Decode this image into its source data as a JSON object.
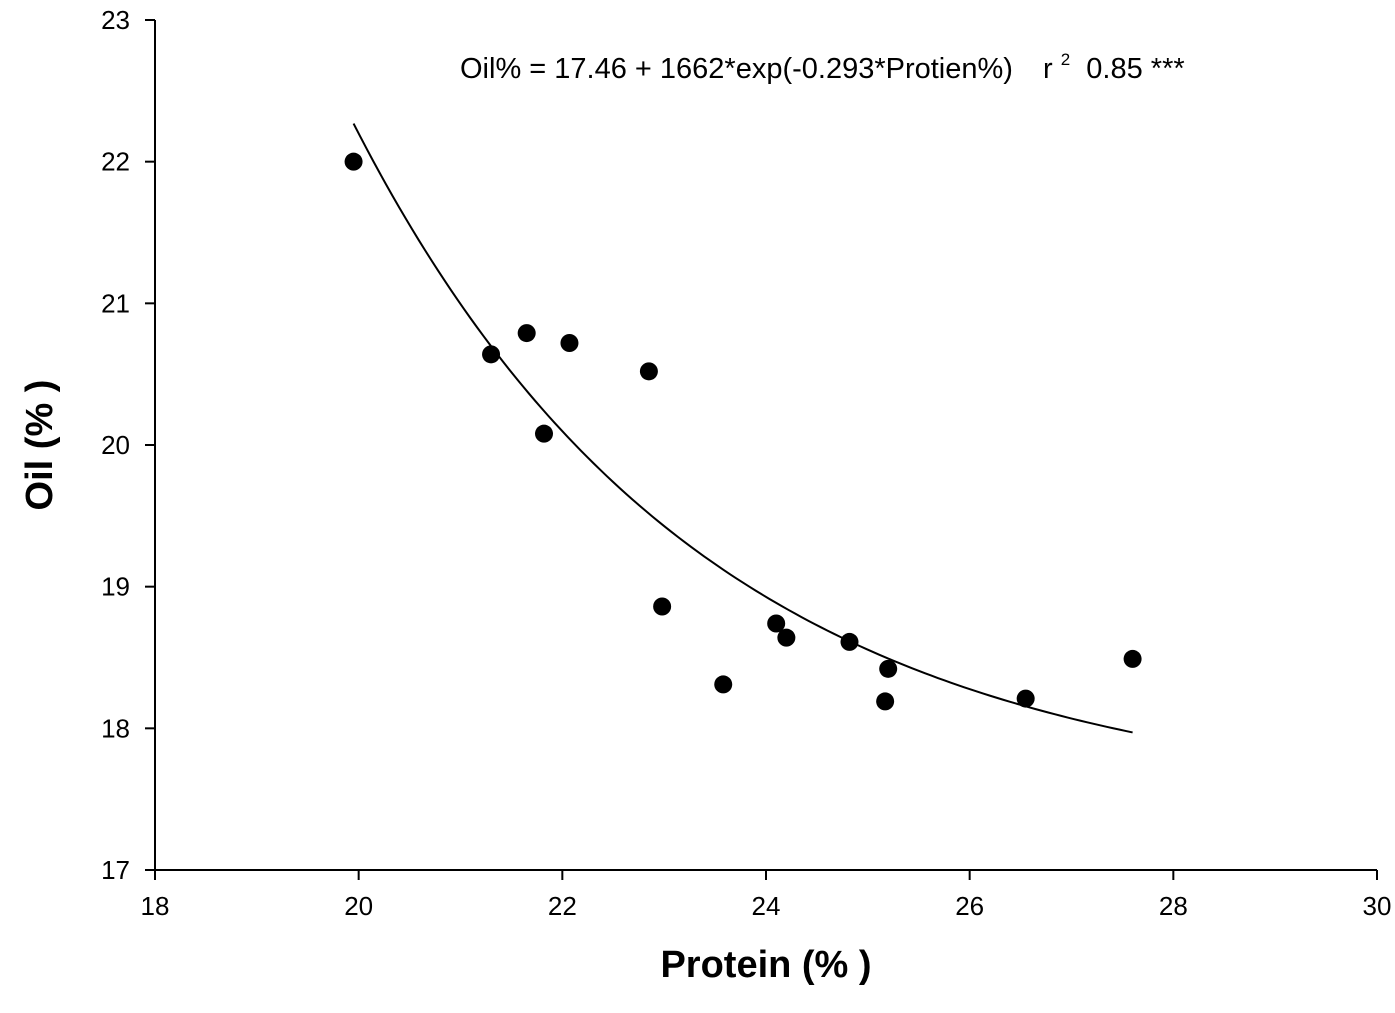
{
  "chart_data": {
    "type": "scatter",
    "title": "",
    "xlabel": "Protein (% )",
    "ylabel": "Oil (% )",
    "xlim": [
      18,
      30
    ],
    "ylim": [
      17,
      23
    ],
    "x_ticks": [
      18,
      20,
      22,
      24,
      26,
      28,
      30
    ],
    "y_ticks": [
      17,
      18,
      19,
      20,
      21,
      22,
      23
    ],
    "x_tick_labels": [
      "18",
      "20",
      "22",
      "24",
      "26",
      "28",
      "30"
    ],
    "y_tick_labels": [
      "17",
      "18",
      "19",
      "20",
      "21",
      "22",
      "23"
    ],
    "grid": false,
    "legend": "none",
    "points": [
      {
        "x": 19.95,
        "y": 22.0
      },
      {
        "x": 21.3,
        "y": 20.64
      },
      {
        "x": 21.65,
        "y": 20.79
      },
      {
        "x": 21.82,
        "y": 20.08
      },
      {
        "x": 22.07,
        "y": 20.72
      },
      {
        "x": 22.85,
        "y": 20.52
      },
      {
        "x": 22.98,
        "y": 18.86
      },
      {
        "x": 23.58,
        "y": 18.31
      },
      {
        "x": 24.1,
        "y": 18.74
      },
      {
        "x": 24.2,
        "y": 18.64
      },
      {
        "x": 24.82,
        "y": 18.61
      },
      {
        "x": 25.17,
        "y": 18.19
      },
      {
        "x": 25.2,
        "y": 18.42
      },
      {
        "x": 26.55,
        "y": 18.21
      },
      {
        "x": 27.6,
        "y": 18.49
      }
    ],
    "fit_curve": {
      "equation": "Oil% = 17.46 + 1662*exp(-0.293*Protien%)",
      "r_label": "r",
      "r_sup": "2",
      "r_value": "0.85 ***",
      "a": 17.46,
      "b": 1662,
      "k": -0.293,
      "x_range": [
        19.95,
        27.6
      ]
    },
    "colors": {
      "points": "#000000",
      "line": "#000000",
      "axes": "#000000"
    }
  }
}
